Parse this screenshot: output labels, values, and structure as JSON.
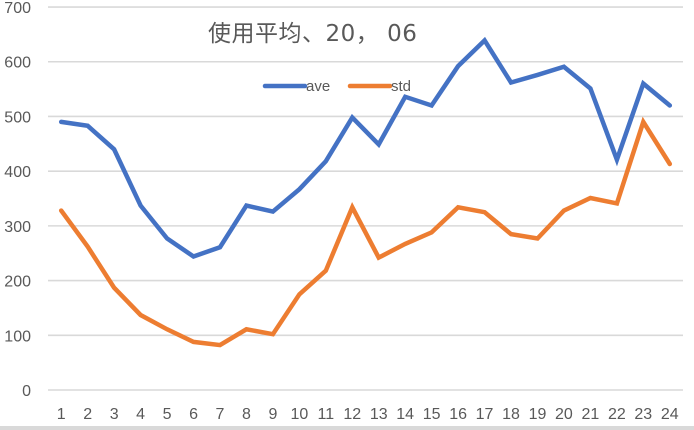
{
  "chart_data": {
    "type": "line",
    "title": "使用平均、20， 06",
    "xlabel": "",
    "ylabel": "",
    "ylim": [
      0,
      700
    ],
    "yticks": [
      0,
      100,
      200,
      300,
      400,
      500,
      600,
      700
    ],
    "grid": true,
    "legend_position": "top-inside",
    "categories": [
      "1",
      "2",
      "3",
      "4",
      "5",
      "6",
      "7",
      "8",
      "9",
      "10",
      "11",
      "12",
      "13",
      "14",
      "15",
      "16",
      "17",
      "18",
      "19",
      "20",
      "21",
      "22",
      "23",
      "24"
    ],
    "series": [
      {
        "name": "ave",
        "color": "#4472c4",
        "values": [
          490,
          483,
          440,
          337,
          277,
          244,
          261,
          337,
          326,
          367,
          418,
          498,
          449,
          536,
          520,
          592,
          639,
          562,
          576,
          591,
          551,
          421,
          560,
          520
        ]
      },
      {
        "name": "std",
        "color": "#ed7d31",
        "values": [
          328,
          262,
          187,
          137,
          111,
          88,
          82,
          111,
          102,
          175,
          218,
          334,
          242,
          267,
          288,
          334,
          325,
          285,
          277,
          328,
          351,
          341,
          490,
          413
        ]
      }
    ]
  },
  "colors": {
    "grid": "#d9d9d9",
    "axis_text": "#595959",
    "title_text": "#595959"
  }
}
